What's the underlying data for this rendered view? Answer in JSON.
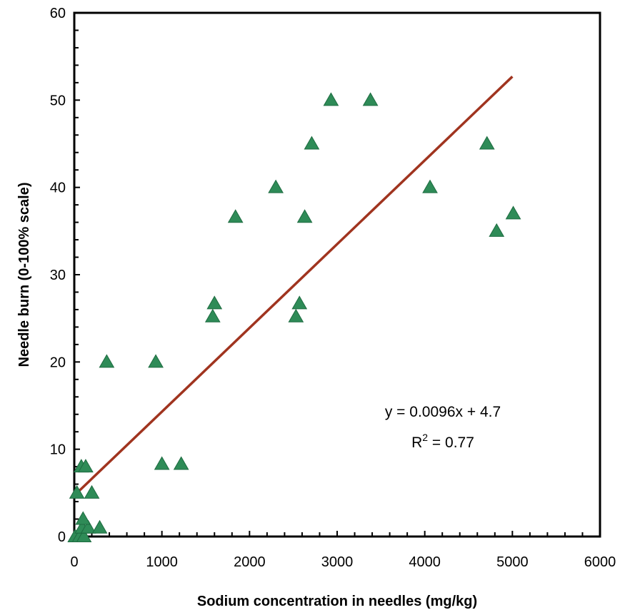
{
  "chart_data": {
    "type": "scatter",
    "xlabel": "Sodium concentration in needles (mg/kg)",
    "ylabel": "Needle burn (0-100% scale)",
    "xlim": [
      0,
      6000
    ],
    "ylim": [
      0,
      60
    ],
    "x_ticks": [
      "0",
      "1000",
      "2000",
      "3000",
      "4000",
      "5000",
      "6000"
    ],
    "y_ticks": [
      "0",
      "10",
      "20",
      "30",
      "40",
      "50",
      "60"
    ],
    "marker": "triangle",
    "marker_color": "#2e8b57",
    "trendline_color": "#a0341f",
    "grid": false,
    "legend": false,
    "series": [
      {
        "points": [
          [
            10,
            0
          ],
          [
            60,
            0
          ],
          [
            110,
            0
          ],
          [
            90,
            1
          ],
          [
            160,
            1
          ],
          [
            290,
            1
          ],
          [
            100,
            2
          ],
          [
            200,
            5
          ],
          [
            30,
            5
          ],
          [
            80,
            8
          ],
          [
            130,
            8
          ],
          [
            370,
            20
          ],
          [
            930,
            20
          ],
          [
            1000,
            8.3
          ],
          [
            1220,
            8.3
          ],
          [
            1580,
            25.2
          ],
          [
            1600,
            26.7
          ],
          [
            1840,
            36.6
          ],
          [
            2300,
            40
          ],
          [
            2530,
            25.2
          ],
          [
            2570,
            26.7
          ],
          [
            2630,
            36.6
          ],
          [
            2710,
            45
          ],
          [
            2930,
            50
          ],
          [
            3380,
            50
          ],
          [
            4060,
            40
          ],
          [
            4710,
            45
          ],
          [
            4820,
            35
          ],
          [
            5010,
            37
          ]
        ]
      }
    ],
    "trendline": {
      "slope": 0.0096,
      "intercept": 4.7,
      "x_range": [
        0,
        5000
      ]
    },
    "annotation": {
      "equation": "y = 0.0096x + 4.7",
      "r2_prefix": "R",
      "r2_superscript": "2",
      "r2_suffix": " = 0.77"
    }
  }
}
